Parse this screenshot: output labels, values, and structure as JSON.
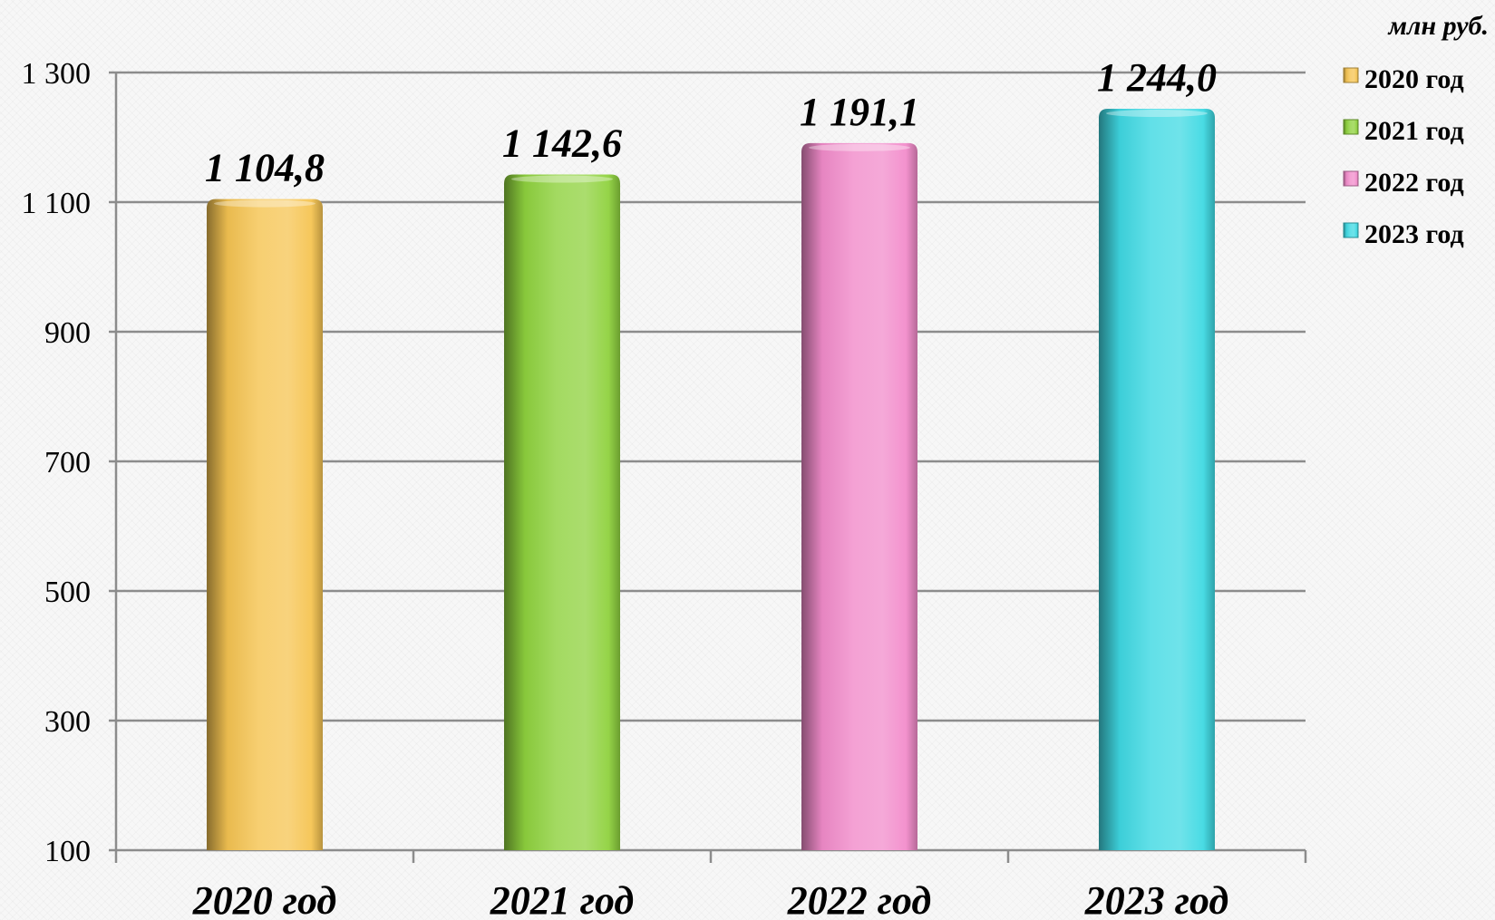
{
  "chart_data": {
    "type": "bar",
    "unit": "млн руб.",
    "categories": [
      "2020 год",
      "2021 год",
      "2022 год",
      "2023 год"
    ],
    "values": [
      1104.8,
      1142.6,
      1191.1,
      1244.0
    ],
    "value_labels": [
      "1 104,8",
      "1 142,6",
      "1 191,1",
      "1 244,0"
    ],
    "yticks": [
      100,
      300,
      500,
      700,
      900,
      1100,
      1300
    ],
    "ytick_labels": [
      "100",
      "300",
      "500",
      "700",
      "900",
      "1 100",
      "1 300"
    ],
    "ylim": [
      100,
      1300
    ],
    "grid": true,
    "legend_position": "top-right",
    "legend": [
      "2020 год",
      "2021 год",
      "2022 год",
      "2023 год"
    ],
    "colors": [
      "#f5c452",
      "#8fd23e",
      "#f28ccb",
      "#3fd9e3"
    ]
  }
}
